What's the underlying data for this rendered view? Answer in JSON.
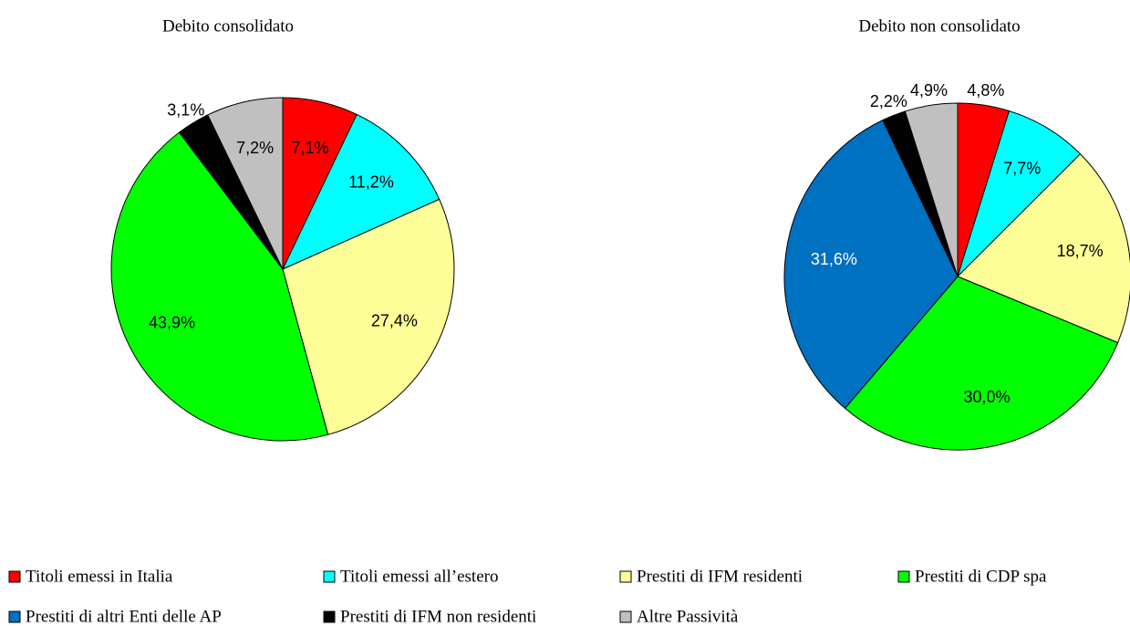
{
  "legend": {
    "categories": [
      "Titoli emessi in Italia",
      "Titoli emessi all’estero",
      "Prestiti di IFM residenti",
      "Prestiti di CDP spa",
      "Prestiti di altri Enti delle AP",
      "Prestiti di IFM non residenti",
      "Altre Passività"
    ],
    "colors": [
      "#ff0000",
      "#00ffff",
      "#ffff99",
      "#00ff00",
      "#0070c0",
      "#000000",
      "#c0c0c0"
    ]
  },
  "chart_data": [
    {
      "type": "pie",
      "title": "Debito consolidato",
      "values": [
        7.1,
        11.2,
        27.4,
        43.9,
        null,
        3.1,
        7.2
      ],
      "value_labels": [
        "7,1%",
        "11,2%",
        "27,4%",
        "43,9%",
        null,
        "3,1%",
        "7,2%"
      ]
    },
    {
      "type": "pie",
      "title": "Debito non consolidato",
      "values": [
        4.8,
        7.7,
        18.7,
        30.0,
        31.6,
        2.2,
        4.9
      ],
      "value_labels": [
        "4,8%",
        "7,7%",
        "18,7%",
        "30,0%",
        "31,6%",
        "2,2%",
        "4,9%"
      ]
    }
  ]
}
